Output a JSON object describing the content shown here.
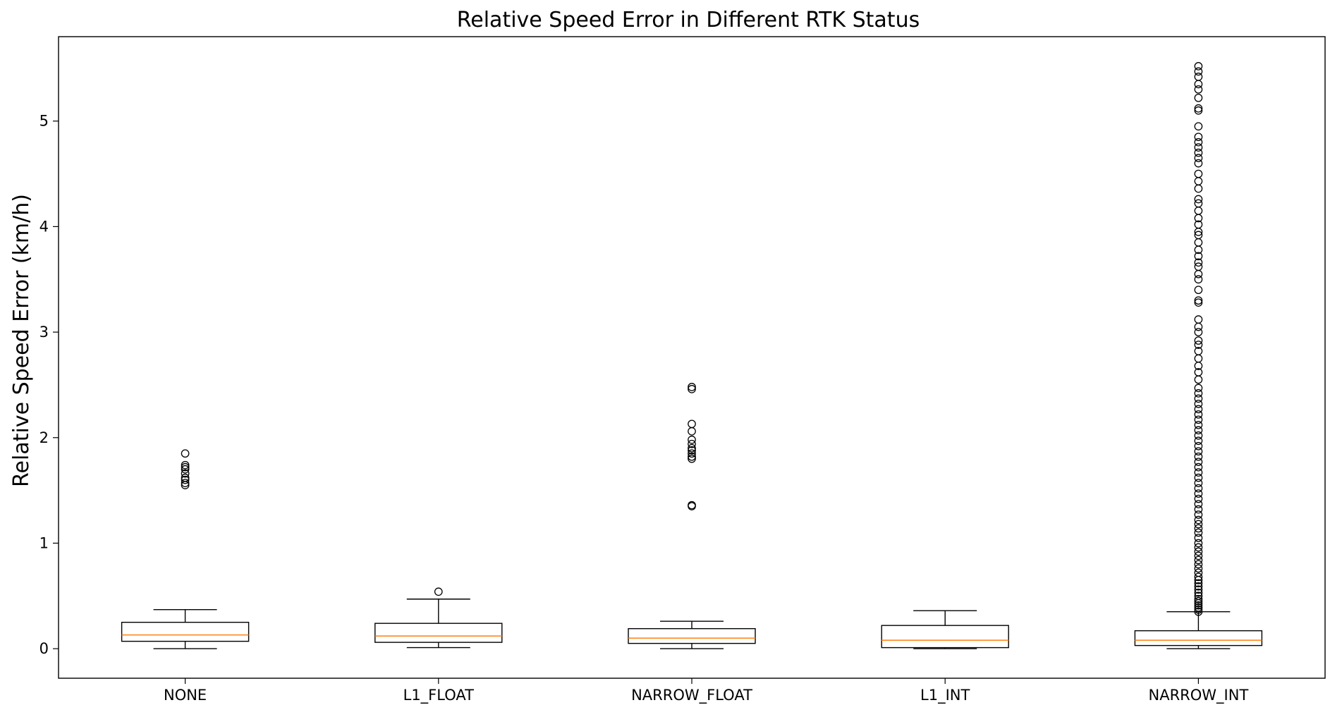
{
  "chart_data": {
    "type": "boxplot",
    "title": "Relative Speed Error in Different RTK Status",
    "xlabel": "",
    "ylabel": "Relative Speed Error (km/h)",
    "ylim": [
      -0.28,
      5.8
    ],
    "yticks": [
      0,
      1,
      2,
      3,
      4,
      5
    ],
    "grid": false,
    "colors": {
      "box": "#000000",
      "median": "#ff7f0e",
      "outlier": "#000000",
      "frame": "#000000"
    },
    "categories": [
      "NONE",
      "L1_FLOAT",
      "NARROW_FLOAT",
      "L1_INT",
      "NARROW_INT"
    ],
    "boxes": [
      {
        "label": "NONE",
        "whisker_low": 0.0,
        "q1": 0.07,
        "median": 0.13,
        "q3": 0.25,
        "whisker_high": 0.37,
        "outliers": [
          1.55,
          1.57,
          1.6,
          1.62,
          1.66,
          1.7,
          1.72,
          1.74,
          1.85
        ]
      },
      {
        "label": "L1_FLOAT",
        "whisker_low": 0.01,
        "q1": 0.06,
        "median": 0.12,
        "q3": 0.24,
        "whisker_high": 0.47,
        "outliers": [
          0.54
        ]
      },
      {
        "label": "NARROW_FLOAT",
        "whisker_low": 0.0,
        "q1": 0.05,
        "median": 0.1,
        "q3": 0.19,
        "whisker_high": 0.26,
        "outliers": [
          1.35,
          1.36,
          1.8,
          1.82,
          1.85,
          1.88,
          1.9,
          1.94,
          1.98,
          2.06,
          2.13,
          2.46,
          2.48
        ]
      },
      {
        "label": "L1_INT",
        "whisker_low": 0.0,
        "q1": 0.01,
        "median": 0.08,
        "q3": 0.22,
        "whisker_high": 0.36,
        "outliers": []
      },
      {
        "label": "NARROW_INT",
        "whisker_low": 0.0,
        "q1": 0.03,
        "median": 0.08,
        "q3": 0.17,
        "whisker_high": 0.35,
        "outliers": [
          0.35,
          0.37,
          0.39,
          0.41,
          0.43,
          0.45,
          0.47,
          0.5,
          0.53,
          0.56,
          0.59,
          0.62,
          0.65,
          0.68,
          0.72,
          0.76,
          0.8,
          0.84,
          0.88,
          0.92,
          0.96,
          1.0,
          1.05,
          1.1,
          1.14,
          1.18,
          1.22,
          1.27,
          1.32,
          1.37,
          1.42,
          1.47,
          1.52,
          1.57,
          1.62,
          1.67,
          1.72,
          1.77,
          1.82,
          1.87,
          1.92,
          1.97,
          2.02,
          2.07,
          2.12,
          2.17,
          2.22,
          2.27,
          2.32,
          2.37,
          2.42,
          2.47,
          2.55,
          2.62,
          2.68,
          2.75,
          2.82,
          2.88,
          2.92,
          3.0,
          3.05,
          3.12,
          3.28,
          3.3,
          3.4,
          3.5,
          3.55,
          3.62,
          3.66,
          3.72,
          3.78,
          3.85,
          3.92,
          3.95,
          4.02,
          4.08,
          4.15,
          4.22,
          4.26,
          4.36,
          4.43,
          4.5,
          4.6,
          4.65,
          4.7,
          4.75,
          4.8,
          4.85,
          4.95,
          5.1,
          5.12,
          5.22,
          5.3,
          5.35,
          5.42,
          5.47,
          5.52
        ]
      }
    ]
  }
}
